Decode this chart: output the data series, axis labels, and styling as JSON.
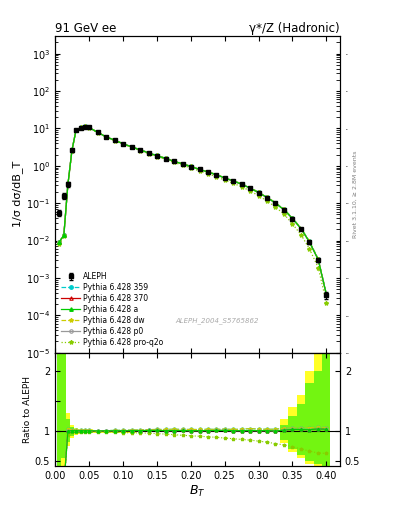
{
  "title_left": "91 GeV ee",
  "title_right": "γ*/Z (Hadronic)",
  "ylabel_main": "1/σ dσ/dB_T",
  "ylabel_ratio": "Ratio to ALEPH",
  "xlabel": "B_T",
  "right_label": "Rivet 3.1.10, ≥ 2.8M events",
  "watermark": "ALEPH_2004_S5765862",
  "xlim": [
    0.0,
    0.42
  ],
  "ylim_main": [
    1e-05,
    3000
  ],
  "ylim_ratio": [
    0.42,
    2.3
  ],
  "bg_color": "#ffffff",
  "ratio_bg_color": "#ffffff",
  "data_ALEPH_x": [
    0.006,
    0.013,
    0.019,
    0.025,
    0.031,
    0.038,
    0.044,
    0.05,
    0.063,
    0.075,
    0.088,
    0.1,
    0.113,
    0.125,
    0.138,
    0.15,
    0.163,
    0.175,
    0.188,
    0.2,
    0.213,
    0.225,
    0.238,
    0.25,
    0.263,
    0.275,
    0.288,
    0.3,
    0.313,
    0.325,
    0.338,
    0.35,
    0.363,
    0.375,
    0.388,
    0.4
  ],
  "data_ALEPH_y": [
    0.055,
    0.16,
    0.32,
    2.6,
    9.0,
    10.5,
    11.2,
    10.6,
    7.8,
    6.0,
    4.8,
    3.9,
    3.2,
    2.65,
    2.2,
    1.85,
    1.56,
    1.32,
    1.12,
    0.95,
    0.8,
    0.68,
    0.57,
    0.47,
    0.39,
    0.32,
    0.25,
    0.19,
    0.14,
    0.1,
    0.065,
    0.038,
    0.02,
    0.009,
    0.003,
    0.00035
  ],
  "data_ALEPH_yerr": [
    0.01,
    0.03,
    0.05,
    0.3,
    0.4,
    0.4,
    0.4,
    0.4,
    0.3,
    0.25,
    0.2,
    0.15,
    0.12,
    0.1,
    0.08,
    0.07,
    0.06,
    0.05,
    0.04,
    0.035,
    0.03,
    0.025,
    0.02,
    0.017,
    0.014,
    0.011,
    0.009,
    0.007,
    0.005,
    0.004,
    0.003,
    0.002,
    0.0012,
    0.0007,
    0.0004,
    8e-05
  ],
  "mc_x": [
    0.006,
    0.013,
    0.019,
    0.025,
    0.031,
    0.038,
    0.044,
    0.05,
    0.063,
    0.075,
    0.088,
    0.1,
    0.113,
    0.125,
    0.138,
    0.15,
    0.163,
    0.175,
    0.188,
    0.2,
    0.213,
    0.225,
    0.238,
    0.25,
    0.263,
    0.275,
    0.288,
    0.3,
    0.313,
    0.325,
    0.338,
    0.35,
    0.363,
    0.375,
    0.388,
    0.4
  ],
  "mc_y_359": [
    0.009,
    0.014,
    0.33,
    2.65,
    9.1,
    10.6,
    11.3,
    10.7,
    7.85,
    6.05,
    4.85,
    3.95,
    3.25,
    2.7,
    2.25,
    1.9,
    1.6,
    1.36,
    1.15,
    0.975,
    0.82,
    0.7,
    0.585,
    0.485,
    0.4,
    0.33,
    0.26,
    0.196,
    0.144,
    0.103,
    0.068,
    0.04,
    0.021,
    0.0095,
    0.0032,
    0.00037
  ],
  "mc_y_370": [
    0.009,
    0.014,
    0.32,
    2.62,
    9.05,
    10.55,
    11.25,
    10.65,
    7.82,
    6.02,
    4.82,
    3.92,
    3.22,
    2.67,
    2.22,
    1.87,
    1.57,
    1.33,
    1.13,
    0.955,
    0.805,
    0.685,
    0.575,
    0.475,
    0.392,
    0.322,
    0.252,
    0.191,
    0.141,
    0.1,
    0.066,
    0.039,
    0.0205,
    0.0092,
    0.0031,
    0.00036
  ],
  "mc_y_a": [
    0.009,
    0.014,
    0.32,
    2.62,
    9.05,
    10.55,
    11.25,
    10.65,
    7.82,
    6.02,
    4.82,
    3.92,
    3.22,
    2.67,
    2.22,
    1.87,
    1.57,
    1.33,
    1.13,
    0.955,
    0.805,
    0.685,
    0.575,
    0.475,
    0.392,
    0.322,
    0.252,
    0.191,
    0.141,
    0.1,
    0.066,
    0.039,
    0.0205,
    0.0092,
    0.0031,
    0.00036
  ],
  "mc_y_dw": [
    0.009,
    0.014,
    0.33,
    2.65,
    9.1,
    10.6,
    11.3,
    10.7,
    7.85,
    6.05,
    4.85,
    3.95,
    3.25,
    2.7,
    2.25,
    1.9,
    1.6,
    1.36,
    1.15,
    0.975,
    0.82,
    0.7,
    0.585,
    0.485,
    0.4,
    0.33,
    0.26,
    0.196,
    0.144,
    0.103,
    0.068,
    0.04,
    0.021,
    0.0095,
    0.0032,
    0.00037
  ],
  "mc_y_p0": [
    0.009,
    0.014,
    0.32,
    2.62,
    9.05,
    10.55,
    11.25,
    10.65,
    7.82,
    6.02,
    4.82,
    3.92,
    3.22,
    2.67,
    2.22,
    1.87,
    1.57,
    1.33,
    1.13,
    0.955,
    0.805,
    0.685,
    0.575,
    0.475,
    0.392,
    0.322,
    0.252,
    0.191,
    0.141,
    0.1,
    0.066,
    0.039,
    0.0205,
    0.0092,
    0.0031,
    0.00036
  ],
  "mc_y_proq2o": [
    0.008,
    0.013,
    0.3,
    2.55,
    8.9,
    10.4,
    11.1,
    10.5,
    7.7,
    5.9,
    4.7,
    3.8,
    3.1,
    2.57,
    2.12,
    1.77,
    1.48,
    1.24,
    1.04,
    0.875,
    0.73,
    0.615,
    0.51,
    0.415,
    0.34,
    0.275,
    0.212,
    0.158,
    0.114,
    0.079,
    0.05,
    0.028,
    0.014,
    0.006,
    0.0019,
    0.00022
  ],
  "color_359": "#00cccc",
  "color_370": "#cc0000",
  "color_a": "#00cc00",
  "color_dw": "#cccc00",
  "color_p0": "#999999",
  "color_proq2o": "#88cc00",
  "band_yellow": "#ffff00",
  "band_green": "#00ee00",
  "ratio_yellow_up": [
    2.3,
    2.3,
    1.3,
    1.1,
    1.05,
    1.04,
    1.03,
    1.03,
    1.02,
    1.02,
    1.02,
    1.02,
    1.02,
    1.01,
    1.01,
    1.01,
    1.01,
    1.01,
    1.01,
    1.01,
    1.01,
    1.01,
    1.01,
    1.01,
    1.01,
    1.01,
    1.01,
    1.01,
    1.01,
    1.01,
    1.2,
    1.4,
    1.6,
    2.0,
    2.3,
    2.3
  ],
  "ratio_yellow_dn": [
    0.42,
    0.42,
    0.75,
    0.88,
    0.94,
    0.95,
    0.96,
    0.96,
    0.97,
    0.97,
    0.97,
    0.97,
    0.97,
    0.98,
    0.98,
    0.98,
    0.98,
    0.98,
    0.98,
    0.98,
    0.98,
    0.98,
    0.98,
    0.98,
    0.98,
    0.98,
    0.98,
    0.98,
    0.98,
    0.98,
    0.8,
    0.65,
    0.55,
    0.45,
    0.42,
    0.42
  ],
  "ratio_green_up": [
    2.3,
    2.3,
    1.2,
    1.06,
    1.03,
    1.02,
    1.02,
    1.02,
    1.01,
    1.01,
    1.01,
    1.01,
    1.01,
    1.01,
    1.01,
    1.01,
    1.01,
    1.01,
    1.01,
    1.01,
    1.01,
    1.01,
    1.01,
    1.01,
    1.01,
    1.01,
    1.01,
    1.01,
    1.01,
    1.01,
    1.1,
    1.25,
    1.45,
    1.8,
    2.0,
    2.3
  ],
  "ratio_green_dn": [
    0.42,
    0.55,
    0.82,
    0.92,
    0.96,
    0.97,
    0.97,
    0.97,
    0.98,
    0.98,
    0.98,
    0.98,
    0.98,
    0.98,
    0.98,
    0.98,
    0.98,
    0.98,
    0.98,
    0.98,
    0.98,
    0.98,
    0.98,
    0.98,
    0.98,
    0.98,
    0.98,
    0.98,
    0.98,
    0.98,
    0.85,
    0.7,
    0.6,
    0.5,
    0.45,
    0.42
  ]
}
